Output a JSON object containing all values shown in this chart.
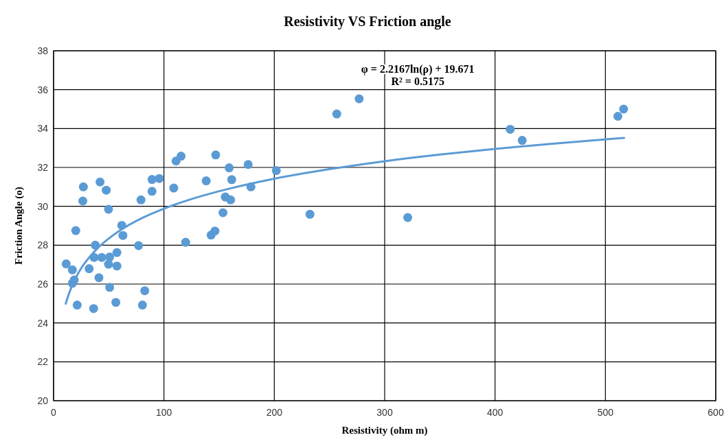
{
  "chart_data": {
    "type": "scatter",
    "title": "Resistivity VS Friction  angle",
    "xlabel": "Resistivity (ohm m)",
    "ylabel": "Friction Angle (o)",
    "annotations": [
      "φ = 2.2167ln(ρ) + 19.671",
      "R² = 0.5175"
    ],
    "xlim": [
      0,
      600
    ],
    "xticks": [
      0,
      100,
      200,
      300,
      400,
      500,
      600
    ],
    "ylim": [
      20,
      38
    ],
    "yticks": [
      20,
      22,
      24,
      26,
      28,
      30,
      32,
      34,
      36,
      38
    ],
    "grid": true,
    "series": [
      {
        "color": "#5b9bd5",
        "marker": "circle",
        "x": [
          115.5,
          111,
          146.9,
          159.1,
          176.3,
          27,
          42.1,
          47.7,
          26.5,
          49.8,
          79.2,
          89.2,
          95.8,
          89.2,
          108.9,
          138.3,
          161.4,
          178.8,
          155.6,
          160.4,
          153.5,
          146.2,
          142.7,
          119.7,
          20.1,
          61.8,
          62.8,
          37.8,
          77,
          57.4,
          36.7,
          43.6,
          50.8,
          49.8,
          57.4,
          11.4,
          17,
          32.2,
          18.7,
          17,
          41.1,
          50.8,
          82.6,
          21.4,
          36.3,
          56.4,
          80.5,
          256.6,
          276.9,
          201.8,
          232.3,
          320.9,
          413.8,
          424.6,
          511.3,
          516.5
        ],
        "values": [
          32.58,
          32.33,
          32.64,
          31.98,
          32.15,
          31.0,
          31.25,
          30.83,
          30.27,
          29.85,
          30.33,
          31.38,
          31.43,
          30.77,
          30.94,
          31.31,
          31.37,
          31.0,
          30.48,
          30.33,
          29.67,
          28.73,
          28.52,
          28.15,
          28.75,
          29.02,
          28.5,
          28.0,
          27.98,
          27.62,
          27.37,
          27.37,
          27.39,
          27.02,
          26.93,
          27.04,
          26.73,
          26.79,
          26.21,
          26.04,
          26.33,
          25.83,
          25.66,
          24.92,
          24.74,
          25.06,
          24.92,
          34.75,
          35.53,
          31.84,
          29.59,
          29.42,
          33.96,
          33.39,
          34.63,
          35.0
        ]
      },
      {
        "type": "line",
        "color": "#5b9bd5",
        "marker": "none",
        "x": [
          11,
          12,
          15,
          20,
          25,
          30,
          40,
          50,
          60,
          80,
          100,
          130,
          160,
          200,
          250,
          300,
          350,
          400,
          450,
          517
        ],
        "values": [
          24.99,
          25.18,
          25.67,
          26.31,
          26.81,
          27.21,
          27.85,
          28.34,
          28.75,
          29.39,
          29.88,
          30.46,
          30.92,
          31.42,
          31.91,
          32.32,
          32.66,
          32.95,
          33.21,
          33.52
        ]
      }
    ]
  }
}
